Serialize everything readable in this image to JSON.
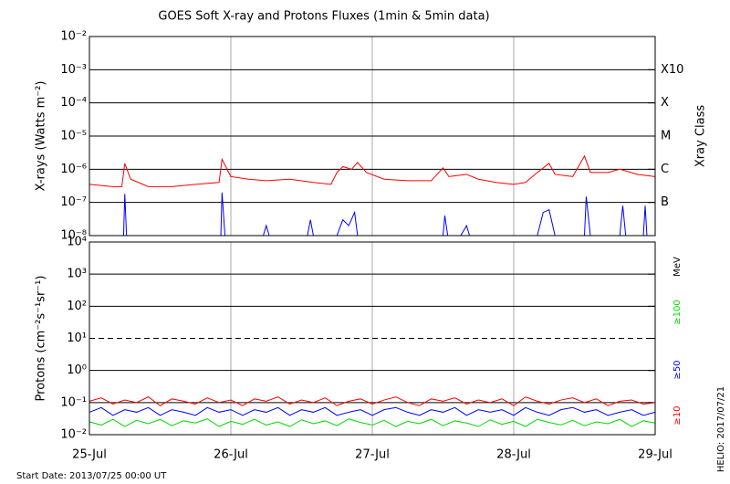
{
  "chart_data": [
    {
      "type": "line",
      "title": "GOES Soft X-ray and Protons Fluxes   (1min & 5min data)",
      "ylabel": "X-rays (Watts m⁻²)",
      "y2label": "Xray Class",
      "log_y": true,
      "ylim": [
        1e-08,
        0.01
      ],
      "yticks": [
        {
          "value": 1e-08,
          "label": "10⁻⁸"
        },
        {
          "value": 1e-07,
          "label": "10⁻⁷"
        },
        {
          "value": 1e-06,
          "label": "10⁻⁶"
        },
        {
          "value": 1e-05,
          "label": "10⁻⁵"
        },
        {
          "value": 0.0001,
          "label": "10⁻⁴"
        },
        {
          "value": 0.001,
          "label": "10⁻³"
        },
        {
          "value": 0.01,
          "label": "10⁻²"
        }
      ],
      "class_ticks": [
        {
          "value": 1e-07,
          "label": "B"
        },
        {
          "value": 1e-06,
          "label": "C"
        },
        {
          "value": 1e-05,
          "label": "M"
        },
        {
          "value": 0.0001,
          "label": "X"
        },
        {
          "value": 0.001,
          "label": "X10"
        }
      ],
      "xlim": [
        0,
        96
      ],
      "xticks": [
        0,
        24,
        48,
        72,
        96
      ],
      "grid": true,
      "series": [
        {
          "color": "#ff0000",
          "x": [
            0,
            4,
            5.5,
            6,
            7,
            10,
            14,
            18,
            22,
            22.5,
            24,
            27,
            30,
            34,
            38,
            41,
            42,
            43,
            44.5,
            45.5,
            47,
            50,
            54,
            58,
            60,
            61,
            64,
            66,
            69,
            72,
            74,
            76,
            78,
            79,
            82,
            84,
            85,
            88,
            90,
            93,
            96
          ],
          "values": [
            3.5e-07,
            3e-07,
            3e-07,
            1.5e-06,
            5e-07,
            3e-07,
            3e-07,
            3.5e-07,
            4e-07,
            2e-06,
            6e-07,
            5e-07,
            4.5e-07,
            5e-07,
            4e-07,
            3.5e-07,
            8e-07,
            1.2e-06,
            1e-06,
            1.6e-06,
            8e-07,
            5e-07,
            4.5e-07,
            4.5e-07,
            1.1e-06,
            6e-07,
            7e-07,
            5e-07,
            4e-07,
            3.5e-07,
            4e-07,
            8e-07,
            1.5e-06,
            7e-07,
            6e-07,
            2.5e-06,
            8e-07,
            8e-07,
            1e-06,
            7e-07,
            6e-07
          ]
        },
        {
          "color": "#0000ff",
          "x": [
            5.8,
            6,
            6.3,
            null,
            22.3,
            22.5,
            23,
            null,
            29.5,
            30,
            30.5,
            null,
            37,
            37.5,
            38,
            null,
            42,
            43,
            44,
            45,
            45.5,
            null,
            60,
            60.3,
            60.8,
            null,
            63,
            64,
            64.5,
            null,
            76,
            77,
            78,
            79,
            null,
            84,
            84.3,
            85,
            null,
            90,
            90.5,
            91,
            null,
            94,
            94.3,
            94.6
          ],
          "values": [
            1e-08,
            1.8e-07,
            1e-08,
            null,
            1e-08,
            2e-07,
            1e-08,
            null,
            1e-08,
            2e-08,
            1e-08,
            null,
            1e-08,
            3e-08,
            1e-08,
            null,
            1e-08,
            3e-08,
            2e-08,
            5e-08,
            1e-08,
            null,
            1e-08,
            4e-08,
            1e-08,
            null,
            1e-08,
            2e-08,
            1e-08,
            null,
            1e-08,
            5e-08,
            6e-08,
            1e-08,
            null,
            1e-08,
            1.5e-07,
            1e-08,
            null,
            1e-08,
            8e-08,
            1e-08,
            null,
            1e-08,
            8e-08,
            1e-08
          ]
        }
      ]
    },
    {
      "type": "line",
      "ylabel": "Protons (cm⁻²s⁻¹sr⁻¹)",
      "legend_title": "MeV",
      "log_y": true,
      "ylim": [
        0.01,
        10000
      ],
      "yticks": [
        {
          "value": 0.01,
          "label": "10⁻²"
        },
        {
          "value": 0.1,
          "label": "10⁻¹"
        },
        {
          "value": 1,
          "label": "10⁰"
        },
        {
          "value": 10,
          "label": "10¹"
        },
        {
          "value": 100,
          "label": "10²"
        },
        {
          "value": 1000,
          "label": "10³"
        },
        {
          "value": 10000,
          "label": "10⁴"
        }
      ],
      "dashed_line": 10,
      "xlim": [
        0,
        96
      ],
      "xticks": [
        {
          "value": 0,
          "label": "25-Jul"
        },
        {
          "value": 24,
          "label": "26-Jul"
        },
        {
          "value": 48,
          "label": "27-Jul"
        },
        {
          "value": 72,
          "label": "28-Jul"
        },
        {
          "value": 96,
          "label": "29-Jul"
        }
      ],
      "grid": true,
      "x": [
        0,
        2,
        4,
        6,
        8,
        10,
        12,
        14,
        16,
        18,
        20,
        22,
        24,
        26,
        28,
        30,
        32,
        34,
        36,
        38,
        40,
        42,
        44,
        46,
        48,
        50,
        52,
        54,
        56,
        58,
        60,
        62,
        64,
        66,
        68,
        70,
        72,
        74,
        76,
        78,
        80,
        82,
        84,
        86,
        88,
        90,
        92,
        94,
        96
      ],
      "series": [
        {
          "name": "≥10",
          "color": "#ff0000",
          "values": [
            0.11,
            0.14,
            0.09,
            0.12,
            0.1,
            0.15,
            0.08,
            0.13,
            0.11,
            0.09,
            0.14,
            0.1,
            0.12,
            0.08,
            0.13,
            0.11,
            0.15,
            0.09,
            0.12,
            0.1,
            0.14,
            0.08,
            0.11,
            0.13,
            0.09,
            0.12,
            0.15,
            0.1,
            0.08,
            0.13,
            0.11,
            0.14,
            0.09,
            0.12,
            0.1,
            0.13,
            0.08,
            0.15,
            0.11,
            0.09,
            0.12,
            0.14,
            0.1,
            0.13,
            0.08,
            0.11,
            0.12,
            0.09,
            0.1
          ]
        },
        {
          "name": "≥50",
          "color": "#0000ff",
          "values": [
            0.05,
            0.07,
            0.04,
            0.06,
            0.05,
            0.07,
            0.04,
            0.06,
            0.05,
            0.04,
            0.07,
            0.05,
            0.06,
            0.04,
            0.06,
            0.05,
            0.07,
            0.04,
            0.06,
            0.05,
            0.07,
            0.04,
            0.05,
            0.06,
            0.04,
            0.06,
            0.07,
            0.05,
            0.04,
            0.06,
            0.05,
            0.07,
            0.04,
            0.06,
            0.05,
            0.06,
            0.04,
            0.07,
            0.05,
            0.04,
            0.06,
            0.07,
            0.05,
            0.06,
            0.04,
            0.05,
            0.06,
            0.04,
            0.05
          ]
        },
        {
          "name": "≥100",
          "color": "#00dd00",
          "values": [
            0.025,
            0.02,
            0.03,
            0.018,
            0.028,
            0.022,
            0.03,
            0.019,
            0.027,
            0.023,
            0.031,
            0.018,
            0.026,
            0.021,
            0.03,
            0.02,
            0.025,
            0.018,
            0.029,
            0.022,
            0.027,
            0.019,
            0.031,
            0.024,
            0.02,
            0.028,
            0.018,
            0.026,
            0.022,
            0.03,
            0.019,
            0.027,
            0.023,
            0.018,
            0.029,
            0.021,
            0.026,
            0.018,
            0.03,
            0.024,
            0.02,
            0.028,
            0.019,
            0.025,
            0.022,
            0.03,
            0.018,
            0.027,
            0.023
          ]
        }
      ]
    }
  ],
  "footer": {
    "start": "Start Date: 2013/07/25 00:00 UT",
    "stamp": "HELIO: 2017/07/21"
  }
}
